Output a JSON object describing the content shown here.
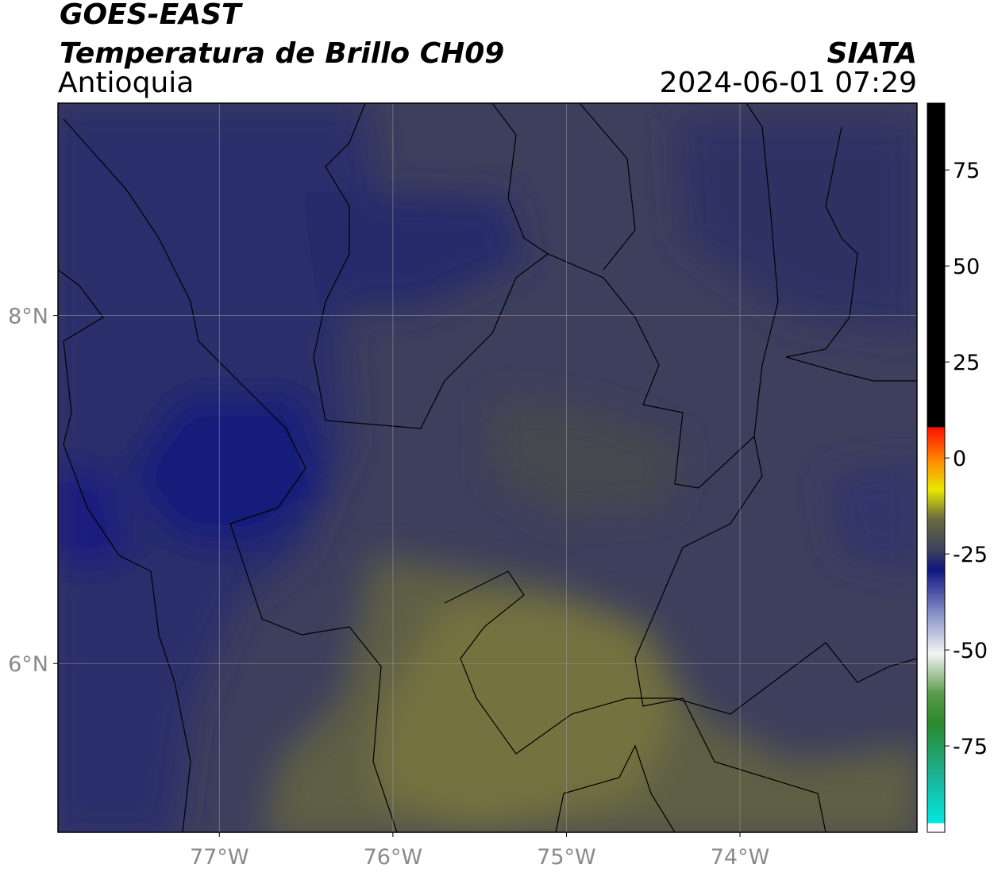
{
  "header": {
    "title": "GOES-EAST",
    "subtitle": "Temperatura de Brillo CH09",
    "region": "Antioquia",
    "source": "SIATA",
    "datetime": "2024-06-01 07:29"
  },
  "map": {
    "xlim": [
      -77.93,
      -72.98
    ],
    "ylim": [
      5.03,
      9.22
    ],
    "xticks": [
      {
        "value": -77,
        "label": "77°W"
      },
      {
        "value": -76,
        "label": "76°W"
      },
      {
        "value": -75,
        "label": "75°W"
      },
      {
        "value": -74,
        "label": "74°W"
      }
    ],
    "yticks": [
      {
        "value": 6,
        "label": "6°N"
      },
      {
        "value": 8,
        "label": "8°N"
      }
    ],
    "grid": true
  },
  "colorbar": {
    "clim": [
      -97.5,
      92.4
    ],
    "ticks": [
      -75,
      -50,
      -25,
      0,
      25,
      50,
      75
    ]
  }
}
